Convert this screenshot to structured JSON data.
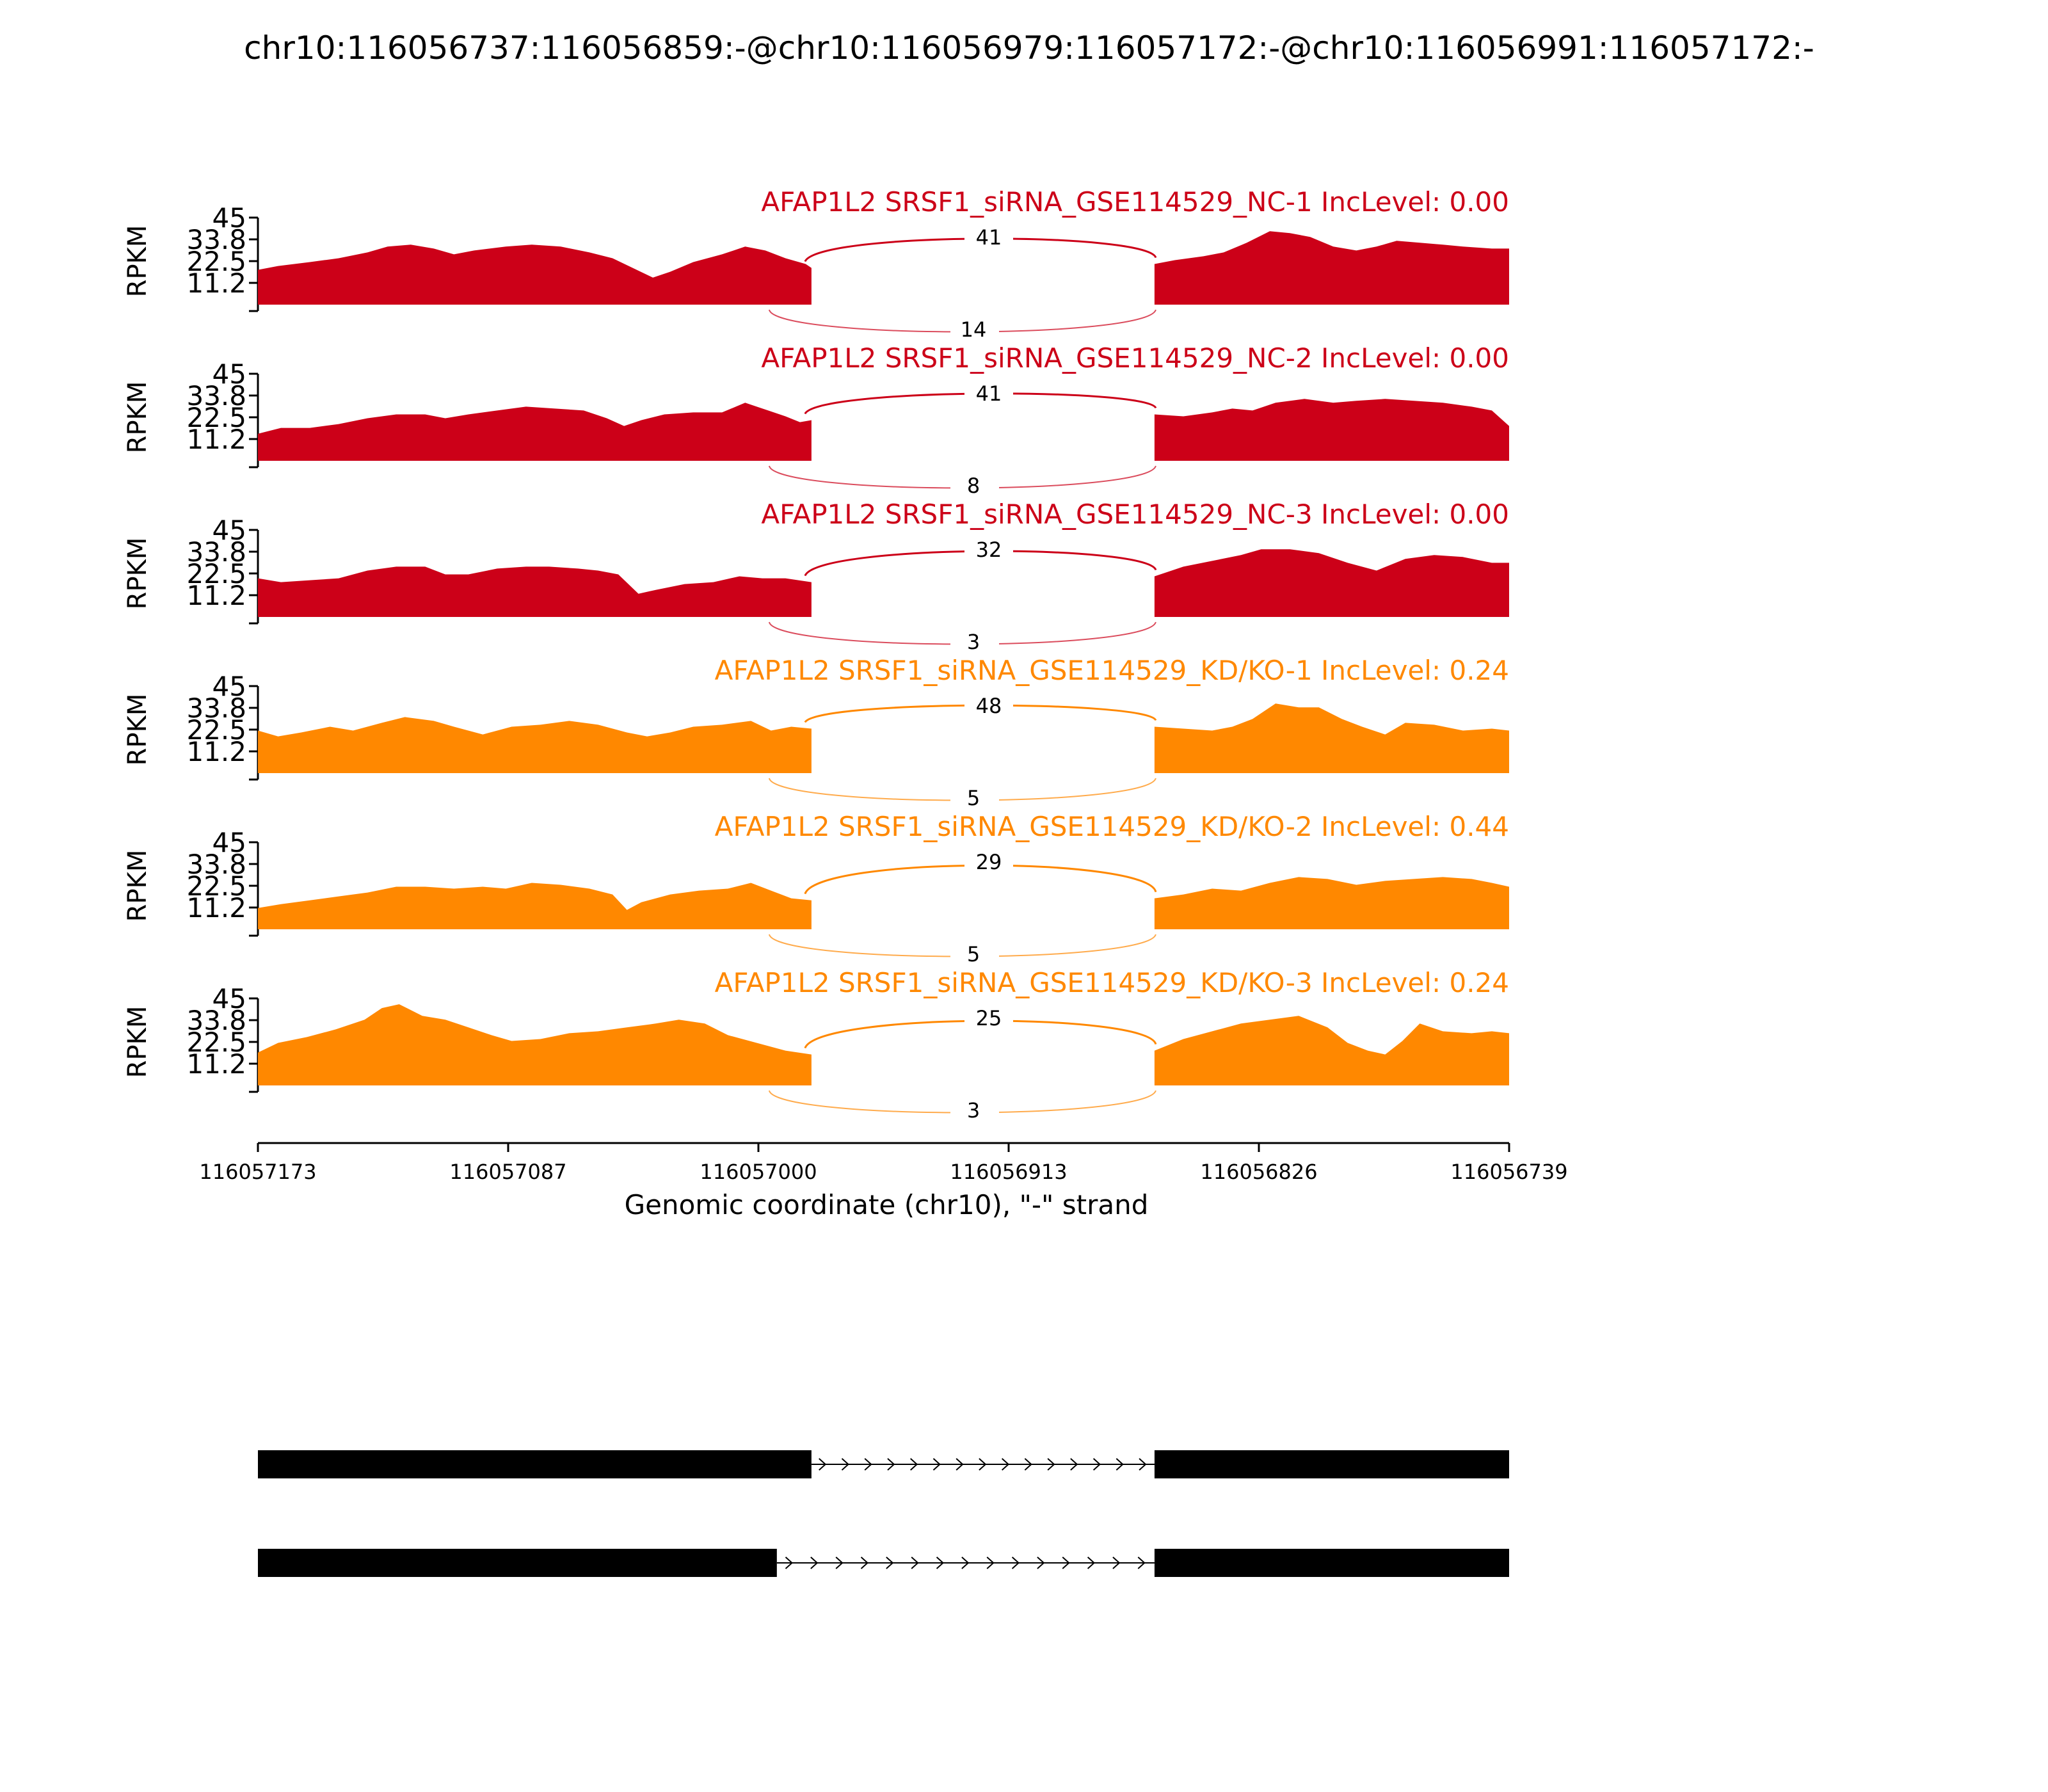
{
  "chart_data": {
    "type": "area",
    "title": "chr10:116056737:116056859:-@chr10:116056979:116057172:-@chr10:116056991:116057172:-",
    "ylabel": "RPKM",
    "xlabel": "Genomic coordinate (chr10), \"-\" strand",
    "ylim": [
      0,
      45
    ],
    "yticks": [
      "45",
      "33.8",
      "22.5",
      "11.2"
    ],
    "xlim": [
      116057173,
      116056739
    ],
    "xticks": [
      "116057173",
      "116057087",
      "116057000",
      "116056913",
      "116056826",
      "116056739"
    ],
    "exon1_end": 116056981,
    "exon2_start": 116056862,
    "colors": {
      "NC": "#cc0018",
      "KD": "#ff8800",
      "text": "#000000"
    },
    "tracks": [
      {
        "label": "AFAP1L2 SRSF1_siRNA_GSE114529_NC-1 IncLevel: 0.00",
        "group": "NC",
        "junction_top": "41",
        "junction_bottom": "14",
        "profile": [
          [
            116057173,
            18
          ],
          [
            116057166,
            20
          ],
          [
            116057155,
            22
          ],
          [
            116057145,
            24
          ],
          [
            116057135,
            27
          ],
          [
            116057128,
            30
          ],
          [
            116057120,
            31
          ],
          [
            116057112,
            29
          ],
          [
            116057105,
            26
          ],
          [
            116057098,
            28
          ],
          [
            116057087,
            30
          ],
          [
            116057078,
            31
          ],
          [
            116057068,
            30
          ],
          [
            116057058,
            27
          ],
          [
            116057050,
            24
          ],
          [
            116057043,
            19
          ],
          [
            116057036,
            14
          ],
          [
            116057030,
            17
          ],
          [
            116057022,
            22
          ],
          [
            116057012,
            26
          ],
          [
            116057004,
            30
          ],
          [
            116056997,
            28
          ],
          [
            116056990,
            24
          ],
          [
            116056983,
            21
          ],
          [
            116056981,
            19
          ],
          [
            116056862,
            21
          ],
          [
            116056855,
            23
          ],
          [
            116056845,
            25
          ],
          [
            116056838,
            27
          ],
          [
            116056830,
            32
          ],
          [
            116056822,
            38
          ],
          [
            116056815,
            37
          ],
          [
            116056808,
            35
          ],
          [
            116056800,
            30
          ],
          [
            116056792,
            28
          ],
          [
            116056785,
            30
          ],
          [
            116056778,
            33
          ],
          [
            116056770,
            32
          ],
          [
            116056762,
            31
          ],
          [
            116056755,
            30
          ],
          [
            116056745,
            29
          ],
          [
            116056739,
            29
          ]
        ]
      },
      {
        "label": "AFAP1L2 SRSF1_siRNA_GSE114529_NC-2 IncLevel: 0.00",
        "group": "NC",
        "junction_top": "41",
        "junction_bottom": "8",
        "profile": [
          [
            116057173,
            14
          ],
          [
            116057165,
            17
          ],
          [
            116057155,
            17
          ],
          [
            116057145,
            19
          ],
          [
            116057135,
            22
          ],
          [
            116057125,
            24
          ],
          [
            116057115,
            24
          ],
          [
            116057108,
            22
          ],
          [
            116057100,
            24
          ],
          [
            116057090,
            26
          ],
          [
            116057080,
            28
          ],
          [
            116057070,
            27
          ],
          [
            116057060,
            26
          ],
          [
            116057052,
            22
          ],
          [
            116057046,
            18
          ],
          [
            116057040,
            21
          ],
          [
            116057032,
            24
          ],
          [
            116057022,
            25
          ],
          [
            116057012,
            25
          ],
          [
            116057004,
            30
          ],
          [
            116056996,
            26
          ],
          [
            116056990,
            23
          ],
          [
            116056985,
            20
          ],
          [
            116056981,
            21
          ],
          [
            116056862,
            24
          ],
          [
            116056852,
            23
          ],
          [
            116056842,
            25
          ],
          [
            116056835,
            27
          ],
          [
            116056828,
            26
          ],
          [
            116056820,
            30
          ],
          [
            116056810,
            32
          ],
          [
            116056800,
            30
          ],
          [
            116056792,
            31
          ],
          [
            116056782,
            32
          ],
          [
            116056772,
            31
          ],
          [
            116056762,
            30
          ],
          [
            116056752,
            28
          ],
          [
            116056745,
            26
          ],
          [
            116056739,
            18
          ]
        ]
      },
      {
        "label": "AFAP1L2 SRSF1_siRNA_GSE114529_NC-3 IncLevel: 0.00",
        "group": "NC",
        "junction_top": "32",
        "junction_bottom": "3",
        "profile": [
          [
            116057173,
            20
          ],
          [
            116057165,
            18
          ],
          [
            116057155,
            19
          ],
          [
            116057145,
            20
          ],
          [
            116057135,
            24
          ],
          [
            116057125,
            26
          ],
          [
            116057115,
            26
          ],
          [
            116057108,
            22
          ],
          [
            116057100,
            22
          ],
          [
            116057090,
            25
          ],
          [
            116057080,
            26
          ],
          [
            116057072,
            26
          ],
          [
            116057062,
            25
          ],
          [
            116057055,
            24
          ],
          [
            116057048,
            22
          ],
          [
            116057041,
            12
          ],
          [
            116057035,
            14
          ],
          [
            116057025,
            17
          ],
          [
            116057015,
            18
          ],
          [
            116057006,
            21
          ],
          [
            116056998,
            20
          ],
          [
            116056990,
            20
          ],
          [
            116056981,
            18
          ],
          [
            116056862,
            21
          ],
          [
            116056852,
            26
          ],
          [
            116056842,
            29
          ],
          [
            116056832,
            32
          ],
          [
            116056825,
            35
          ],
          [
            116056815,
            35
          ],
          [
            116056805,
            33
          ],
          [
            116056795,
            28
          ],
          [
            116056785,
            24
          ],
          [
            116056775,
            30
          ],
          [
            116056765,
            32
          ],
          [
            116056755,
            31
          ],
          [
            116056745,
            28
          ],
          [
            116056739,
            28
          ]
        ]
      },
      {
        "label": "AFAP1L2 SRSF1_siRNA_GSE114529_KD/KO-1 IncLevel: 0.24",
        "group": "KD",
        "junction_top": "48",
        "junction_bottom": "5",
        "profile": [
          [
            116057173,
            22
          ],
          [
            116057166,
            19
          ],
          [
            116057158,
            21
          ],
          [
            116057148,
            24
          ],
          [
            116057140,
            22
          ],
          [
            116057130,
            26
          ],
          [
            116057122,
            29
          ],
          [
            116057112,
            27
          ],
          [
            116057105,
            24
          ],
          [
            116057095,
            20
          ],
          [
            116057085,
            24
          ],
          [
            116057075,
            25
          ],
          [
            116057065,
            27
          ],
          [
            116057055,
            25
          ],
          [
            116057045,
            21
          ],
          [
            116057038,
            19
          ],
          [
            116057030,
            21
          ],
          [
            116057022,
            24
          ],
          [
            116057012,
            25
          ],
          [
            116057002,
            27
          ],
          [
            116056995,
            22
          ],
          [
            116056988,
            24
          ],
          [
            116056981,
            23
          ],
          [
            116056862,
            24
          ],
          [
            116056852,
            23
          ],
          [
            116056842,
            22
          ],
          [
            116056835,
            24
          ],
          [
            116056828,
            28
          ],
          [
            116056820,
            36
          ],
          [
            116056812,
            34
          ],
          [
            116056805,
            34
          ],
          [
            116056797,
            28
          ],
          [
            116056790,
            24
          ],
          [
            116056782,
            20
          ],
          [
            116056775,
            26
          ],
          [
            116056765,
            25
          ],
          [
            116056755,
            22
          ],
          [
            116056745,
            23
          ],
          [
            116056739,
            22
          ]
        ]
      },
      {
        "label": "AFAP1L2 SRSF1_siRNA_GSE114529_KD/KO-2 IncLevel: 0.44",
        "group": "KD",
        "junction_top": "29",
        "junction_bottom": "5",
        "profile": [
          [
            116057173,
            11
          ],
          [
            116057165,
            13
          ],
          [
            116057155,
            15
          ],
          [
            116057145,
            17
          ],
          [
            116057135,
            19
          ],
          [
            116057125,
            22
          ],
          [
            116057115,
            22
          ],
          [
            116057105,
            21
          ],
          [
            116057095,
            22
          ],
          [
            116057087,
            21
          ],
          [
            116057078,
            24
          ],
          [
            116057068,
            23
          ],
          [
            116057058,
            21
          ],
          [
            116057050,
            18
          ],
          [
            116057045,
            10
          ],
          [
            116057040,
            14
          ],
          [
            116057030,
            18
          ],
          [
            116057020,
            20
          ],
          [
            116057010,
            21
          ],
          [
            116057002,
            24
          ],
          [
            116056995,
            20
          ],
          [
            116056988,
            16
          ],
          [
            116056981,
            15
          ],
          [
            116056862,
            16
          ],
          [
            116056852,
            18
          ],
          [
            116056842,
            21
          ],
          [
            116056832,
            20
          ],
          [
            116056822,
            24
          ],
          [
            116056812,
            27
          ],
          [
            116056802,
            26
          ],
          [
            116056792,
            23
          ],
          [
            116056782,
            25
          ],
          [
            116056772,
            26
          ],
          [
            116056762,
            27
          ],
          [
            116056752,
            26
          ],
          [
            116056745,
            24
          ],
          [
            116056739,
            22
          ]
        ]
      },
      {
        "label": "AFAP1L2 SRSF1_siRNA_GSE114529_KD/KO-3 IncLevel: 0.24",
        "group": "KD",
        "junction_top": "25",
        "junction_bottom": "3",
        "profile": [
          [
            116057173,
            17
          ],
          [
            116057166,
            22
          ],
          [
            116057156,
            25
          ],
          [
            116057146,
            29
          ],
          [
            116057136,
            34
          ],
          [
            116057130,
            40
          ],
          [
            116057124,
            42
          ],
          [
            116057116,
            36
          ],
          [
            116057108,
            34
          ],
          [
            116057100,
            30
          ],
          [
            116057092,
            26
          ],
          [
            116057085,
            23
          ],
          [
            116057075,
            24
          ],
          [
            116057065,
            27
          ],
          [
            116057055,
            28
          ],
          [
            116057045,
            30
          ],
          [
            116057035,
            32
          ],
          [
            116057027,
            34
          ],
          [
            116057018,
            32
          ],
          [
            116057010,
            26
          ],
          [
            116057000,
            22
          ],
          [
            116056990,
            18
          ],
          [
            116056981,
            16
          ],
          [
            116056862,
            18
          ],
          [
            116056852,
            24
          ],
          [
            116056842,
            28
          ],
          [
            116056832,
            32
          ],
          [
            116056822,
            34
          ],
          [
            116056812,
            36
          ],
          [
            116056802,
            30
          ],
          [
            116056795,
            22
          ],
          [
            116056788,
            18
          ],
          [
            116056782,
            16
          ],
          [
            116056776,
            23
          ],
          [
            116056770,
            32
          ],
          [
            116056762,
            28
          ],
          [
            116056752,
            27
          ],
          [
            116056745,
            28
          ],
          [
            116056739,
            27
          ]
        ]
      }
    ],
    "isoforms": [
      {
        "exons": [
          [
            116057173,
            116056981
          ],
          [
            116056862,
            116056739
          ]
        ]
      },
      {
        "exons": [
          [
            116057173,
            116056993
          ],
          [
            116056862,
            116056739
          ]
        ]
      }
    ]
  }
}
